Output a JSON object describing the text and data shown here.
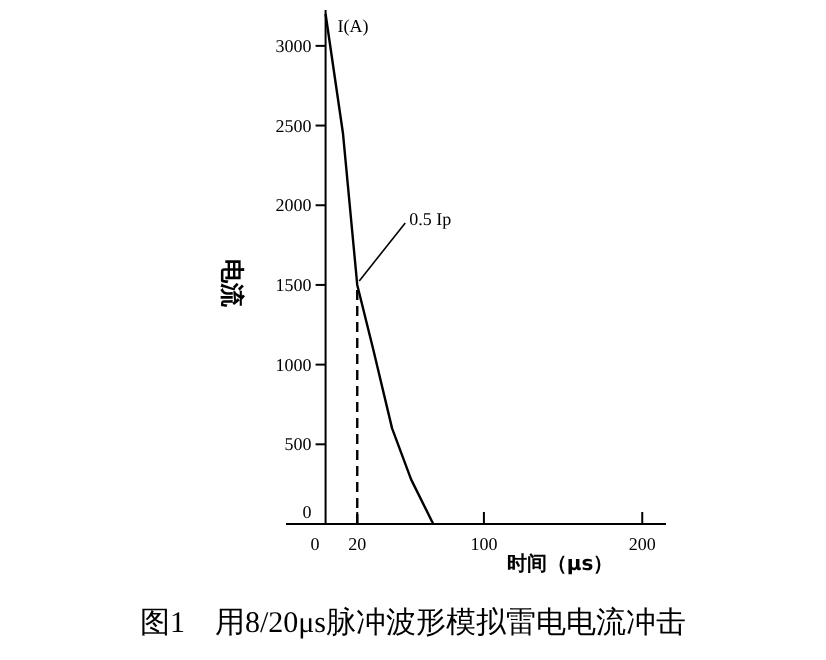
{
  "chart_data": {
    "type": "line",
    "title": "图1　用8/20μs脉冲波形模拟雷电电流冲击",
    "xlabel": "时间（μs）",
    "ylabel": "电流",
    "annotations": [
      "I(A)",
      {
        "text": "0.5 Ip",
        "x": 20,
        "y": 1500
      }
    ],
    "series": [
      {
        "color": "#000000",
        "x": [
          0,
          11,
          20,
          30,
          42,
          54,
          68
        ],
        "values": [
          3200,
          2450,
          1500,
          1100,
          600,
          280,
          0
        ]
      },
      {
        "color": "#000000",
        "line_style": "dashed",
        "x": [
          20,
          20
        ],
        "values": [
          0,
          1500
        ]
      }
    ],
    "xlim": [
      -25,
      215
    ],
    "xticks": [
      0,
      20,
      100,
      200
    ],
    "ylim": [
      0,
      3225
    ],
    "yticks": [
      0,
      500,
      1000,
      1500,
      2000,
      2500,
      3000
    ],
    "grid": false,
    "marker": "none"
  }
}
